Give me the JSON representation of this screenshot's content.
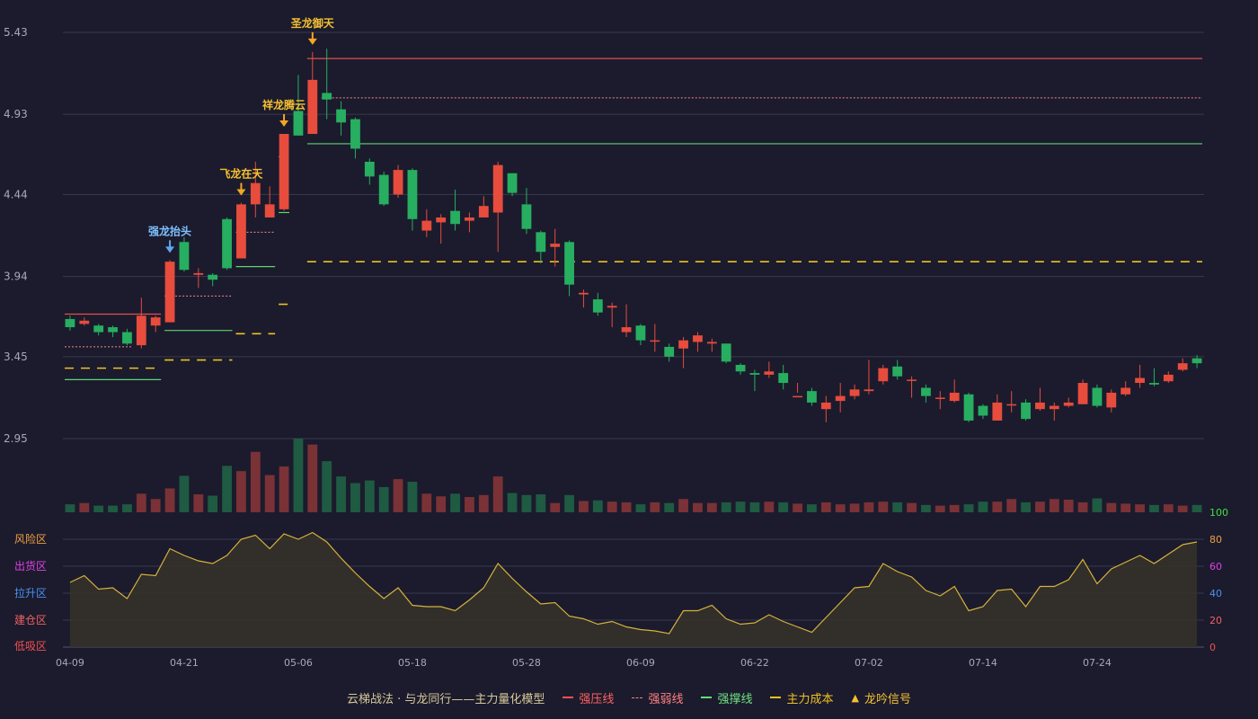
{
  "colors": {
    "background": "#1b1b2d",
    "up": "#e74c3c",
    "down": "#27ae60",
    "up_volume": "#7a3236",
    "down_volume": "#1f5a42",
    "grid": "#3a3a4e",
    "axis_text": "#a8a8b8",
    "resistance": "#e05050",
    "weak": "#f08a8a",
    "support": "#5fd36f",
    "cost": "#f0c020",
    "signal": "#f5a623",
    "signal_blue": "#5fa8f0",
    "oscillator_line": "#d6b23a",
    "oscillator_fill": "#35312a",
    "zone_risk": "#f0a040",
    "zone_ship": "#e040e0",
    "zone_pull": "#4a90f0",
    "zone_build": "#f06060",
    "zone_low": "#f05050"
  },
  "legend": {
    "title": "云梯战法 · 与龙同行——主力量化模型",
    "items": [
      {
        "label": "强压线",
        "color": "#ff5050",
        "style": "solid"
      },
      {
        "label": "强弱线",
        "color": "#ff8080",
        "style": "dotted"
      },
      {
        "label": "强撑线",
        "color": "#60e070",
        "style": "solid"
      },
      {
        "label": "主力成本",
        "color": "#f0c020",
        "style": "dashed"
      },
      {
        "label": "龙吟信号",
        "color": "#f5c030",
        "style": "triangle"
      }
    ]
  },
  "chart_data": {
    "type": "candlestick",
    "price_axis": {
      "ticks": [
        "5.43",
        "4.93",
        "4.44",
        "3.94",
        "3.45",
        "2.95"
      ],
      "ylim": [
        2.95,
        5.43
      ]
    },
    "x_ticks": [
      "04-09",
      "04-21",
      "05-06",
      "05-18",
      "05-28",
      "06-09",
      "06-22",
      "07-02",
      "07-14",
      "07-24"
    ],
    "x_tick_index": [
      0,
      8,
      16,
      24,
      32,
      40,
      48,
      56,
      64,
      72
    ],
    "candles": [
      [
        3.68,
        3.63,
        3.7,
        3.61
      ],
      [
        3.65,
        3.67,
        3.69,
        3.64
      ],
      [
        3.64,
        3.6,
        3.65,
        3.58
      ],
      [
        3.63,
        3.6,
        3.64,
        3.57
      ],
      [
        3.6,
        3.53,
        3.62,
        3.52
      ],
      [
        3.52,
        3.7,
        3.81,
        3.5
      ],
      [
        3.64,
        3.69,
        3.7,
        3.6
      ],
      [
        3.66,
        4.03,
        4.04,
        3.66
      ],
      [
        4.15,
        3.98,
        4.18,
        3.97
      ],
      [
        3.95,
        3.96,
        3.99,
        3.87
      ],
      [
        3.95,
        3.92,
        3.96,
        3.88
      ],
      [
        4.29,
        3.99,
        4.3,
        3.98
      ],
      [
        4.05,
        4.38,
        4.39,
        4.05
      ],
      [
        4.38,
        4.51,
        4.64,
        4.3
      ],
      [
        4.3,
        4.38,
        4.49,
        4.3
      ],
      [
        4.35,
        4.81,
        4.81,
        4.34
      ],
      [
        4.95,
        4.8,
        5.17,
        4.8
      ],
      [
        4.81,
        5.14,
        5.31,
        4.81
      ],
      [
        5.06,
        5.02,
        5.33,
        4.9
      ],
      [
        4.96,
        4.88,
        5.01,
        4.8
      ],
      [
        4.9,
        4.72,
        4.91,
        4.66
      ],
      [
        4.64,
        4.55,
        4.66,
        4.5
      ],
      [
        4.56,
        4.38,
        4.58,
        4.37
      ],
      [
        4.44,
        4.59,
        4.62,
        4.42
      ],
      [
        4.59,
        4.29,
        4.6,
        4.22
      ],
      [
        4.22,
        4.28,
        4.35,
        4.18
      ],
      [
        4.27,
        4.3,
        4.32,
        4.14
      ],
      [
        4.34,
        4.26,
        4.47,
        4.22
      ],
      [
        4.28,
        4.3,
        4.33,
        4.21
      ],
      [
        4.3,
        4.37,
        4.43,
        4.31
      ],
      [
        4.33,
        4.62,
        4.64,
        4.09
      ],
      [
        4.57,
        4.45,
        4.57,
        4.43
      ],
      [
        4.38,
        4.23,
        4.48,
        4.2
      ],
      [
        4.21,
        4.09,
        4.22,
        4.02
      ],
      [
        4.12,
        4.14,
        4.23,
        4.0
      ],
      [
        4.15,
        3.89,
        4.16,
        3.82
      ],
      [
        3.83,
        3.84,
        3.86,
        3.75
      ],
      [
        3.8,
        3.72,
        3.84,
        3.7
      ],
      [
        3.75,
        3.76,
        3.78,
        3.63
      ],
      [
        3.6,
        3.63,
        3.77,
        3.57
      ],
      [
        3.64,
        3.55,
        3.65,
        3.52
      ],
      [
        3.55,
        3.55,
        3.65,
        3.48
      ],
      [
        3.51,
        3.45,
        3.53,
        3.42
      ],
      [
        3.5,
        3.55,
        3.57,
        3.38
      ],
      [
        3.54,
        3.58,
        3.6,
        3.48
      ],
      [
        3.53,
        3.54,
        3.56,
        3.48
      ],
      [
        3.53,
        3.42,
        3.53,
        3.41
      ],
      [
        3.4,
        3.36,
        3.41,
        3.34
      ],
      [
        3.35,
        3.34,
        3.37,
        3.24
      ],
      [
        3.34,
        3.36,
        3.42,
        3.32
      ],
      [
        3.35,
        3.29,
        3.4,
        3.25
      ],
      [
        3.21,
        3.21,
        3.29,
        3.23
      ],
      [
        3.24,
        3.17,
        3.26,
        3.15
      ],
      [
        3.13,
        3.17,
        3.21,
        3.05
      ],
      [
        3.18,
        3.21,
        3.29,
        3.11
      ],
      [
        3.21,
        3.25,
        3.28,
        3.19
      ],
      [
        3.24,
        3.25,
        3.43,
        3.22
      ],
      [
        3.3,
        3.38,
        3.4,
        3.28
      ],
      [
        3.39,
        3.33,
        3.43,
        3.31
      ],
      [
        3.31,
        3.31,
        3.33,
        3.2
      ],
      [
        3.26,
        3.21,
        3.28,
        3.17
      ],
      [
        3.2,
        3.2,
        3.24,
        3.13
      ],
      [
        3.18,
        3.23,
        3.31,
        3.17
      ],
      [
        3.22,
        3.06,
        3.23,
        3.05
      ],
      [
        3.15,
        3.09,
        3.16,
        3.07
      ],
      [
        3.06,
        3.17,
        3.22,
        3.06
      ],
      [
        3.16,
        3.16,
        3.24,
        3.11
      ],
      [
        3.17,
        3.07,
        3.19,
        3.06
      ],
      [
        3.13,
        3.17,
        3.26,
        3.12
      ],
      [
        3.13,
        3.15,
        3.17,
        3.06
      ],
      [
        3.15,
        3.17,
        3.2,
        3.14
      ],
      [
        3.16,
        3.29,
        3.31,
        3.16
      ],
      [
        3.26,
        3.15,
        3.28,
        3.14
      ],
      [
        3.14,
        3.23,
        3.25,
        3.11
      ],
      [
        3.22,
        3.26,
        3.3,
        3.21
      ],
      [
        3.29,
        3.32,
        3.4,
        3.26
      ],
      [
        3.29,
        3.28,
        3.38,
        3.27
      ],
      [
        3.3,
        3.34,
        3.36,
        3.29
      ],
      [
        3.37,
        3.41,
        3.44,
        3.36
      ],
      [
        3.44,
        3.41,
        3.46,
        3.38
      ]
    ],
    "volumes": [
      12,
      14,
      10,
      10,
      12,
      28,
      20,
      36,
      55,
      27,
      25,
      70,
      62,
      91,
      56,
      69,
      111,
      102,
      77,
      54,
      44,
      48,
      38,
      50,
      46,
      28,
      24,
      28,
      23,
      26,
      54,
      29,
      26,
      27,
      14,
      26,
      17,
      18,
      16,
      15,
      12,
      15,
      14,
      20,
      14,
      14,
      15,
      16,
      15,
      16,
      15,
      13,
      12,
      15,
      12,
      13,
      15,
      16,
      15,
      14,
      11,
      10,
      11,
      12,
      16,
      16,
      20,
      15,
      16,
      20,
      19,
      15,
      21,
      14,
      13,
      12,
      11,
      12,
      10,
      11
    ],
    "strong_pressure": [
      {
        "from": 0,
        "to": 6,
        "value": 3.71
      },
      {
        "from": 17,
        "to": 79,
        "value": 5.27
      }
    ],
    "weak_line": [
      {
        "from": 0,
        "to": 4,
        "value": 3.51
      },
      {
        "from": 7,
        "to": 11,
        "value": 3.82
      },
      {
        "from": 12,
        "to": 14,
        "value": 4.21
      },
      {
        "from": 15,
        "to": 15,
        "value": 4.67
      },
      {
        "from": 18,
        "to": 79,
        "value": 5.03
      }
    ],
    "strong_support": [
      {
        "from": 0,
        "to": 6,
        "value": 3.31
      },
      {
        "from": 7,
        "to": 11,
        "value": 3.61
      },
      {
        "from": 12,
        "to": 14,
        "value": 4.0
      },
      {
        "from": 15,
        "to": 15,
        "value": 4.33
      },
      {
        "from": 17,
        "to": 79,
        "value": 4.75
      }
    ],
    "main_cost": [
      {
        "from": 0,
        "to": 6,
        "value": 3.38
      },
      {
        "from": 7,
        "to": 11,
        "value": 3.43
      },
      {
        "from": 12,
        "to": 14,
        "value": 3.59
      },
      {
        "from": 15,
        "to": 15,
        "value": 3.77
      },
      {
        "from": 17,
        "to": 79,
        "value": 4.03
      }
    ],
    "signals": [
      {
        "index": 7,
        "label": "强龙抬头",
        "color": "blue"
      },
      {
        "index": 12,
        "label": "飞龙在天",
        "color": "gold"
      },
      {
        "index": 15,
        "label": "祥龙腾云",
        "color": "gold"
      },
      {
        "index": 17,
        "label": "圣龙御天",
        "color": "gold"
      }
    ],
    "oscillator": {
      "ylim": [
        0,
        100
      ],
      "right_ticks": [
        "100",
        "80",
        "60",
        "40",
        "20",
        "0"
      ],
      "zones": [
        "风险区",
        "出货区",
        "拉升区",
        "建仓区",
        "低吸区"
      ],
      "values": [
        48,
        53,
        43,
        44,
        36,
        54,
        53,
        73,
        68,
        64,
        62,
        68,
        80,
        83,
        73,
        84,
        80,
        85,
        78,
        66,
        55,
        45,
        36,
        44,
        31,
        30,
        30,
        27,
        35,
        44,
        62,
        51,
        41,
        32,
        33,
        23,
        21,
        17,
        19,
        15,
        13,
        12,
        10,
        27,
        27,
        31,
        21,
        17,
        18,
        24,
        19,
        15,
        11,
        22,
        33,
        44,
        45,
        62,
        56,
        52,
        42,
        38,
        45,
        27,
        30,
        42,
        43,
        30,
        45,
        45,
        50,
        65,
        47,
        58,
        63,
        68,
        62,
        69,
        76,
        78
      ]
    }
  }
}
